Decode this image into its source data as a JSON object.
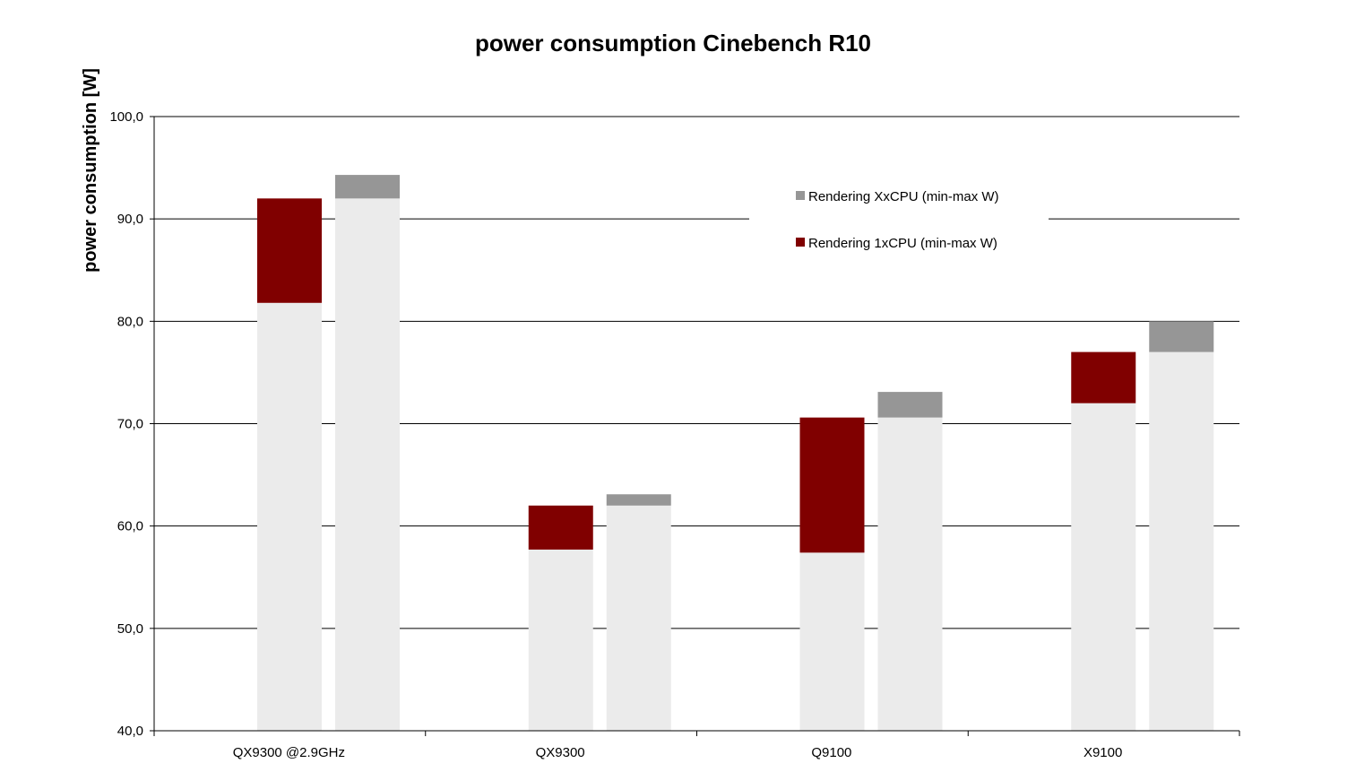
{
  "chart_data": {
    "type": "bar",
    "title": "power consumption Cinebench R10",
    "xlabel": "",
    "ylabel": "power consumption [W]",
    "ylim": [
      40,
      100
    ],
    "yticks": [
      "40,0",
      "50,0",
      "60,0",
      "70,0",
      "80,0",
      "90,0",
      "100,0"
    ],
    "grid": true,
    "legend_position": "top-right",
    "categories": [
      "QX9300 @2.9GHz",
      "QX9300",
      "Q9100",
      "X9100"
    ],
    "series": [
      {
        "name": "Rendering 1xCPU (min-max W)",
        "color": "#800000",
        "min": [
          81.8,
          57.7,
          57.4,
          72.0
        ],
        "max": [
          92.0,
          62.0,
          70.6,
          77.0
        ]
      },
      {
        "name": "Rendering XxCPU (min-max W)",
        "color": "#969696",
        "min": [
          92.0,
          62.0,
          70.6,
          77.0
        ],
        "max": [
          94.3,
          63.1,
          73.1,
          80.0
        ]
      }
    ],
    "legend": [
      {
        "name": "Rendering XxCPU (min-max W)",
        "color": "#969696"
      },
      {
        "name": "Rendering 1xCPU (min-max W)",
        "color": "#800000"
      }
    ],
    "base_color": "#ebebeb"
  }
}
